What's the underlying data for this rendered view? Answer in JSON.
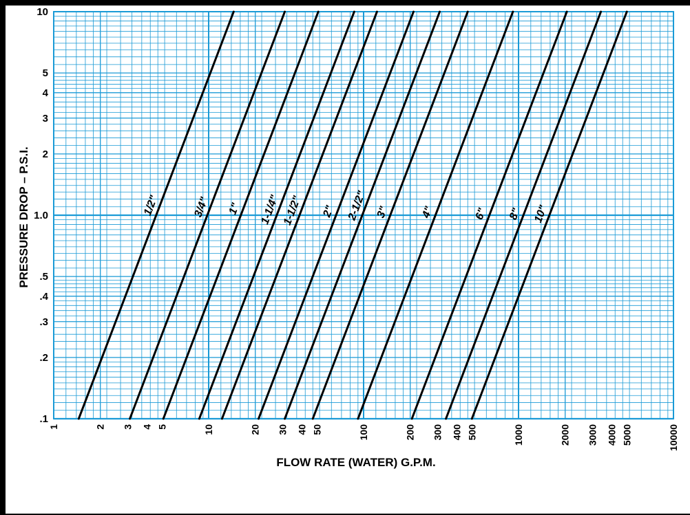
{
  "chart_data": {
    "type": "line",
    "xlabel": "FLOW RATE (WATER) G.P.M.",
    "ylabel": "PRESSURE DROP – P.S.I.",
    "xscale": "log",
    "yscale": "log",
    "xlim": [
      1,
      10000
    ],
    "ylim": [
      0.1,
      10
    ],
    "grid": true,
    "grid_color": "#1a9ad6",
    "line_color": "#000000",
    "xticks": [
      {
        "value": 1,
        "label": "1"
      },
      {
        "value": 2,
        "label": "2"
      },
      {
        "value": 3,
        "label": "3"
      },
      {
        "value": 4,
        "label": "4"
      },
      {
        "value": 5,
        "label": "5"
      },
      {
        "value": 10,
        "label": "10"
      },
      {
        "value": 20,
        "label": "20"
      },
      {
        "value": 30,
        "label": "30"
      },
      {
        "value": 40,
        "label": "40"
      },
      {
        "value": 50,
        "label": "50"
      },
      {
        "value": 100,
        "label": "100"
      },
      {
        "value": 200,
        "label": "200"
      },
      {
        "value": 300,
        "label": "300"
      },
      {
        "value": 400,
        "label": "400"
      },
      {
        "value": 500,
        "label": "500"
      },
      {
        "value": 1000,
        "label": "1000"
      },
      {
        "value": 2000,
        "label": "2000"
      },
      {
        "value": 3000,
        "label": "3000"
      },
      {
        "value": 4000,
        "label": "4000"
      },
      {
        "value": 5000,
        "label": "5000"
      },
      {
        "value": 10000,
        "label": "10000"
      }
    ],
    "yticks": [
      {
        "value": 0.1,
        "label": ".1"
      },
      {
        "value": 0.2,
        "label": ".2"
      },
      {
        "value": 0.3,
        "label": ".3"
      },
      {
        "value": 0.4,
        "label": ".4"
      },
      {
        "value": 0.5,
        "label": ".5"
      },
      {
        "value": 1.0,
        "label": "1.0"
      },
      {
        "value": 2,
        "label": "2"
      },
      {
        "value": 3,
        "label": "3"
      },
      {
        "value": 4,
        "label": "4"
      },
      {
        "value": 5,
        "label": "5"
      },
      {
        "value": 10,
        "label": "10"
      }
    ],
    "series": [
      {
        "name": "1/2\"",
        "x": [
          1.45,
          14.5
        ],
        "y": [
          0.1,
          10
        ]
      },
      {
        "name": "3/4\"",
        "x": [
          3.1,
          31
        ],
        "y": [
          0.1,
          10
        ]
      },
      {
        "name": "1\"",
        "x": [
          5.1,
          51
        ],
        "y": [
          0.1,
          10
        ]
      },
      {
        "name": "1-1/4\"",
        "x": [
          8.7,
          87
        ],
        "y": [
          0.1,
          10
        ]
      },
      {
        "name": "1-1/2\"",
        "x": [
          12.2,
          122
        ],
        "y": [
          0.1,
          10
        ]
      },
      {
        "name": "2\"",
        "x": [
          21,
          210
        ],
        "y": [
          0.1,
          10
        ]
      },
      {
        "name": "2-1/2\"",
        "x": [
          31,
          310
        ],
        "y": [
          0.1,
          10
        ]
      },
      {
        "name": "3\"",
        "x": [
          47,
          470
        ],
        "y": [
          0.1,
          10
        ]
      },
      {
        "name": "4\"",
        "x": [
          92,
          920
        ],
        "y": [
          0.1,
          10
        ]
      },
      {
        "name": "6\"",
        "x": [
          205,
          2050
        ],
        "y": [
          0.1,
          10
        ]
      },
      {
        "name": "8\"",
        "x": [
          340,
          3400
        ],
        "y": [
          0.1,
          10
        ]
      },
      {
        "name": "10\"",
        "x": [
          500,
          5000
        ],
        "y": [
          0.1,
          10
        ]
      }
    ],
    "series_label_y": [
      1.1,
      1.08,
      1.06,
      1.05,
      1.04,
      1.03,
      1.1,
      1.02,
      1.02,
      1.0,
      1.0,
      1.0
    ]
  }
}
